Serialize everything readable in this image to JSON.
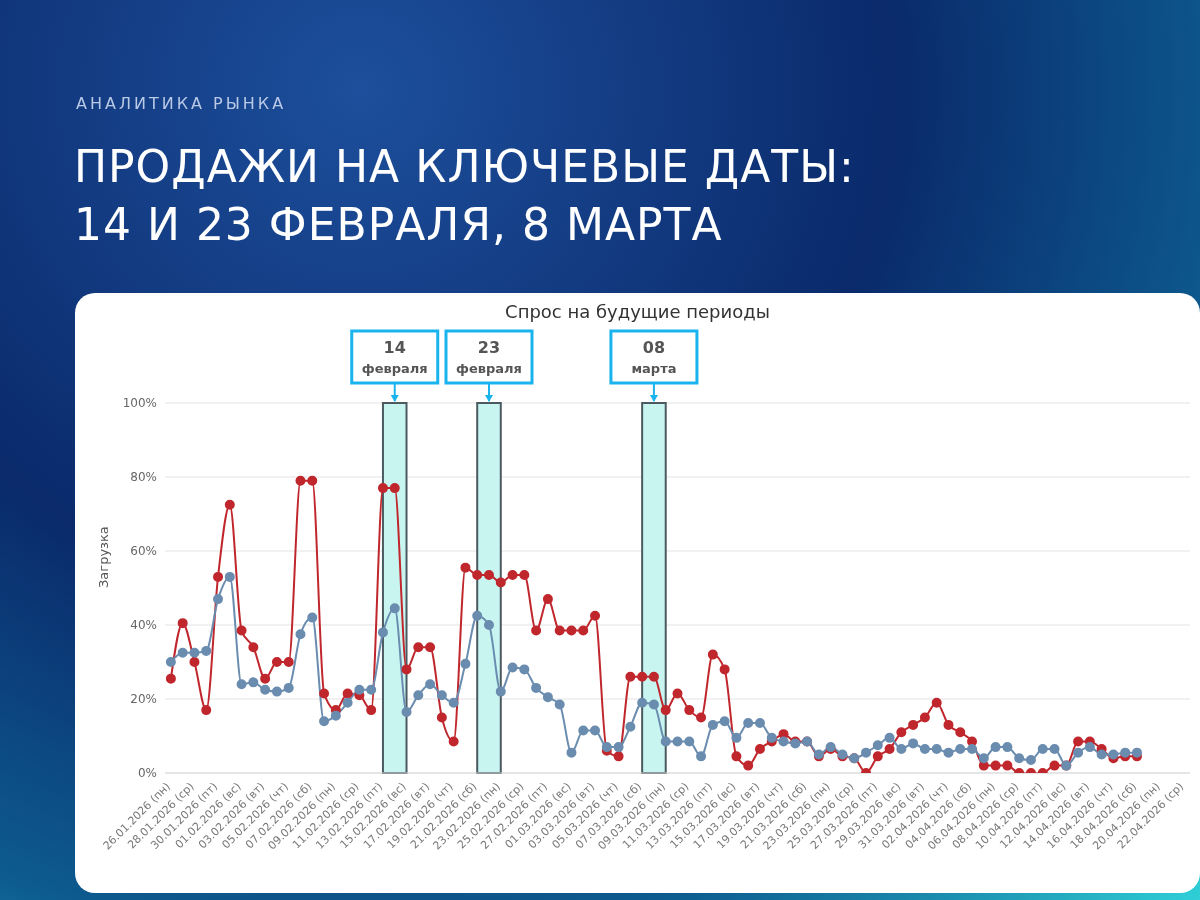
{
  "chart_data": {
    "type": "line",
    "subtitle": "АНАЛИТИКА РЫНКА",
    "title": "ПРОДАЖИ НА КЛЮЧЕВЫЕ ДАТЫ: 14 И 23 ФЕВРАЛЯ, 8 МАРТА",
    "annotations": [
      "Спрос на будущие периоды"
    ],
    "ylabel": "Загрузка",
    "categories": [
      "26.01.2026 (пн)",
      null,
      "28.01.2026 (ср)",
      null,
      "30.01.2026 (пт)",
      null,
      "01.02.2026 (вс)",
      null,
      "03.02.2026 (вт)",
      null,
      "05.02.2026 (чт)",
      null,
      "07.02.2026 (сб)",
      null,
      "09.02.2026 (пн)",
      null,
      "11.02.2026 (ср)",
      null,
      "13.02.2026 (пт)",
      null,
      "15.02.2026 (вс)",
      null,
      "17.02.2026 (вт)",
      null,
      "19.02.2026 (чт)",
      null,
      "21.02.2026 (сб)",
      null,
      "23.02.2026 (пн)",
      null,
      "25.02.2026 (ср)",
      null,
      "27.02.2026 (пт)",
      null,
      "01.03.2026 (вс)",
      null,
      "03.03.2026 (вт)",
      null,
      "05.03.2026 (чт)",
      null,
      "07.03.2026 (сб)",
      null,
      "09.03.2026 (пн)",
      null,
      "11.03.2026 (ср)",
      null,
      "13.03.2026 (пт)",
      null,
      "15.03.2026 (вс)",
      null,
      "17.03.2026 (вт)",
      null,
      "19.03.2026 (чт)",
      null,
      "21.03.2026 (сб)",
      null,
      "23.03.2026 (пн)",
      null,
      "25.03.2026 (ср)",
      null,
      "27.03.2026 (пт)",
      null,
      "29.03.2026 (вс)",
      null,
      "31.03.2026 (вт)",
      null,
      "02.04.2026 (чт)",
      null,
      "04.04.2026 (сб)",
      null,
      "06.04.2026 (пн)",
      null,
      "08.04.2026 (ср)",
      null,
      "10.04.2026 (пт)",
      null,
      "12.04.2026 (вс)",
      null,
      "14.04.2026 (вт)",
      null,
      "16.04.2026 (чт)",
      null,
      "18.04.2026 (сб)",
      null,
      "20.04.2026 (пн)",
      null,
      "22.04.2026 (ср)"
    ],
    "series": [
      {
        "color": "#c0272d",
        "values": [
          25.5,
          40.5,
          30,
          17,
          53,
          72.5,
          38.5,
          34,
          25.5,
          30,
          30,
          79,
          79,
          21.5,
          17,
          21.5,
          21,
          17,
          77,
          77,
          28,
          34,
          34,
          15,
          8.5,
          55.5,
          53.5,
          53.5,
          51.5,
          53.5,
          53.5,
          38.5,
          47,
          38.5,
          38.5,
          38.5,
          42.5,
          6,
          4.5,
          26,
          26,
          26,
          17,
          21.5,
          17,
          15,
          32,
          28,
          4.5,
          2,
          6.5,
          8.5,
          10.5,
          8.5,
          8.5,
          4.5,
          6.5,
          4.5,
          4,
          0,
          4.5,
          6.5,
          11,
          13,
          15,
          19,
          13,
          11,
          8.5,
          2,
          2,
          2,
          0,
          0,
          0,
          2,
          2,
          8.5,
          8.5,
          6.5,
          4,
          4.5,
          4.5,
          null,
          null,
          null,
          null
        ]
      },
      {
        "color": "#6a8caf",
        "values": [
          30,
          32.5,
          32.5,
          33,
          47,
          53,
          24,
          24.5,
          22.5,
          22,
          23,
          37.5,
          42,
          14,
          15.5,
          19,
          22.5,
          22.5,
          38,
          44.5,
          16.5,
          21,
          24,
          21,
          19,
          29.5,
          42.5,
          40,
          22,
          28.5,
          28,
          23,
          20.5,
          18.5,
          5.5,
          11.5,
          11.5,
          7,
          7,
          12.5,
          19,
          18.5,
          8.5,
          8.5,
          8.5,
          4.5,
          13,
          14,
          9.5,
          13.5,
          13.5,
          9.5,
          8.5,
          8,
          8.5,
          5,
          7,
          5,
          4,
          5.5,
          7.5,
          9.5,
          6.5,
          8,
          6.5,
          6.5,
          5.5,
          6.5,
          6.5,
          4,
          7,
          7,
          4,
          3.5,
          6.5,
          6.5,
          2,
          5.5,
          7,
          5,
          5,
          5.5,
          5.5,
          null,
          null,
          null,
          null
        ]
      }
    ],
    "ylim": [
      0,
      100
    ],
    "yticks": [
      {
        "value": 0,
        "label": "0%"
      },
      {
        "value": 20,
        "label": "20%"
      },
      {
        "value": 40,
        "label": "40%"
      },
      {
        "value": 60,
        "label": "60%"
      },
      {
        "value": 80,
        "label": "80%"
      },
      {
        "value": 100,
        "label": "100%"
      }
    ],
    "grid": "y",
    "marker": "circle",
    "line_style": "solid",
    "legend": false,
    "bands": [
      {
        "axis": "x",
        "from": "13.02.2026 (пт)",
        "to": "15.02.2026 (вс)",
        "label": "14 февраля",
        "color": "#c9f5f1"
      },
      {
        "axis": "x",
        "from": "21.02.2026 (сб)",
        "to": "23.02.2026 (пн)",
        "label": "23 февраля",
        "color": "#c9f5f1"
      },
      {
        "axis": "x",
        "from": "07.03.2026 (сб)",
        "to": "09.03.2026 (пн)",
        "label": "08 марта",
        "color": "#c9f5f1"
      }
    ]
  }
}
